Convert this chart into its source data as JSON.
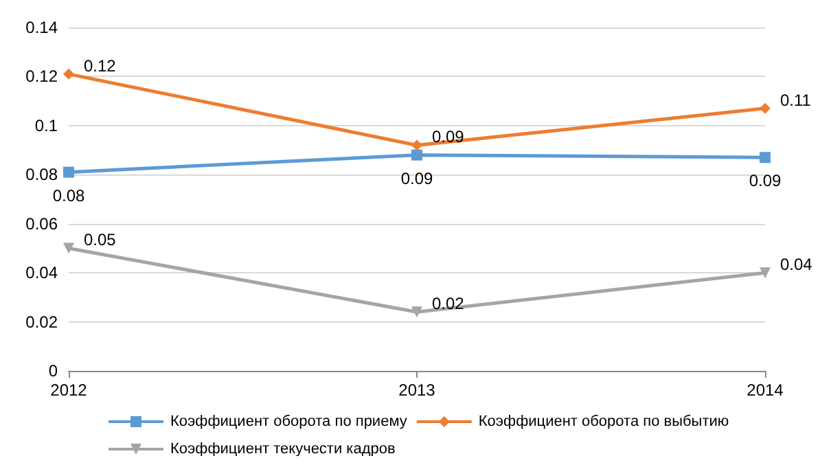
{
  "chart_data": {
    "type": "line",
    "categories": [
      "2012",
      "2013",
      "2014"
    ],
    "series": [
      {
        "name": "Коэффициент оборота по приему",
        "color": "#5b9bd5",
        "marker": "square",
        "values": [
          0.081,
          0.088,
          0.087
        ],
        "value_labels": [
          "0.08",
          "0.09",
          "0.09"
        ]
      },
      {
        "name": "Коэффициент оборота по выбытию",
        "color": "#ed7d31",
        "marker": "diamond",
        "values": [
          0.121,
          0.092,
          0.107
        ],
        "value_labels": [
          "0.12",
          "0.09",
          "0.11"
        ]
      },
      {
        "name": "Коэффициент текучести кадров",
        "color": "#a5a5a5",
        "marker": "triangle",
        "values": [
          0.05,
          0.024,
          0.04
        ],
        "value_labels": [
          "0.05",
          "0.02",
          "0.04"
        ]
      }
    ],
    "ylim": [
      0,
      0.14
    ],
    "yticks": [
      0,
      0.02,
      0.04,
      0.06,
      0.08,
      0.1,
      0.12,
      0.14
    ],
    "grid": "y",
    "legend": "bottom"
  }
}
